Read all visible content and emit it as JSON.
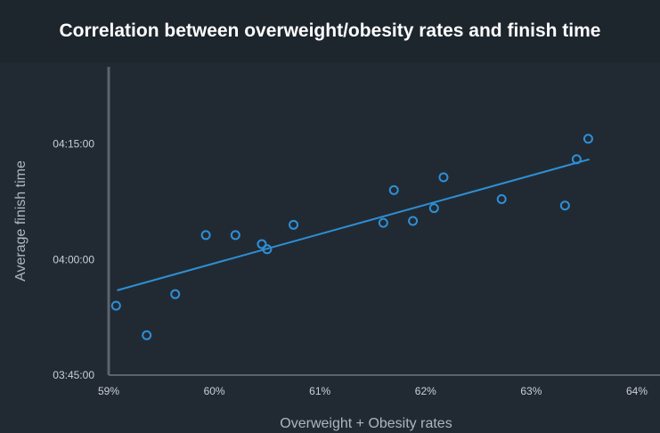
{
  "title": "Correlation between overweight/obesity rates and finish time",
  "colors": {
    "background": "#212a33",
    "title_band": "#1d252d",
    "axis": "#5b646d",
    "series": "#2e8fd6"
  },
  "chart_data": {
    "type": "scatter",
    "title": "Correlation between overweight/obesity rates and finish time",
    "xlabel": "Overweight + Obesity rates",
    "ylabel": "Average finish time",
    "xlim": [
      59,
      64
    ],
    "ylim": [
      "03:45:00",
      "04:25:00"
    ],
    "x_ticks": [
      "59%",
      "60%",
      "61%",
      "62%",
      "63%",
      "64%"
    ],
    "y_ticks": [
      "03:45:00",
      "04:00:00",
      "04:15:00"
    ],
    "grid": false,
    "points": [
      {
        "x": 59.07,
        "y": "03:54:00"
      },
      {
        "x": 59.36,
        "y": "03:50:10"
      },
      {
        "x": 59.63,
        "y": "03:55:30"
      },
      {
        "x": 59.92,
        "y": "04:03:10"
      },
      {
        "x": 60.2,
        "y": "04:03:10"
      },
      {
        "x": 60.45,
        "y": "04:02:00"
      },
      {
        "x": 60.5,
        "y": "04:01:20"
      },
      {
        "x": 60.75,
        "y": "04:04:30"
      },
      {
        "x": 61.6,
        "y": "04:04:45"
      },
      {
        "x": 61.7,
        "y": "04:09:00"
      },
      {
        "x": 61.88,
        "y": "04:05:00"
      },
      {
        "x": 62.08,
        "y": "04:06:40"
      },
      {
        "x": 62.17,
        "y": "04:10:40"
      },
      {
        "x": 62.72,
        "y": "04:07:50"
      },
      {
        "x": 63.32,
        "y": "04:07:00"
      },
      {
        "x": 63.43,
        "y": "04:13:00"
      },
      {
        "x": 63.54,
        "y": "04:15:40"
      }
    ],
    "trendline": {
      "from": {
        "x": 59.08,
        "y": "03:56:00"
      },
      "to": {
        "x": 63.55,
        "y": "04:13:00"
      }
    }
  }
}
